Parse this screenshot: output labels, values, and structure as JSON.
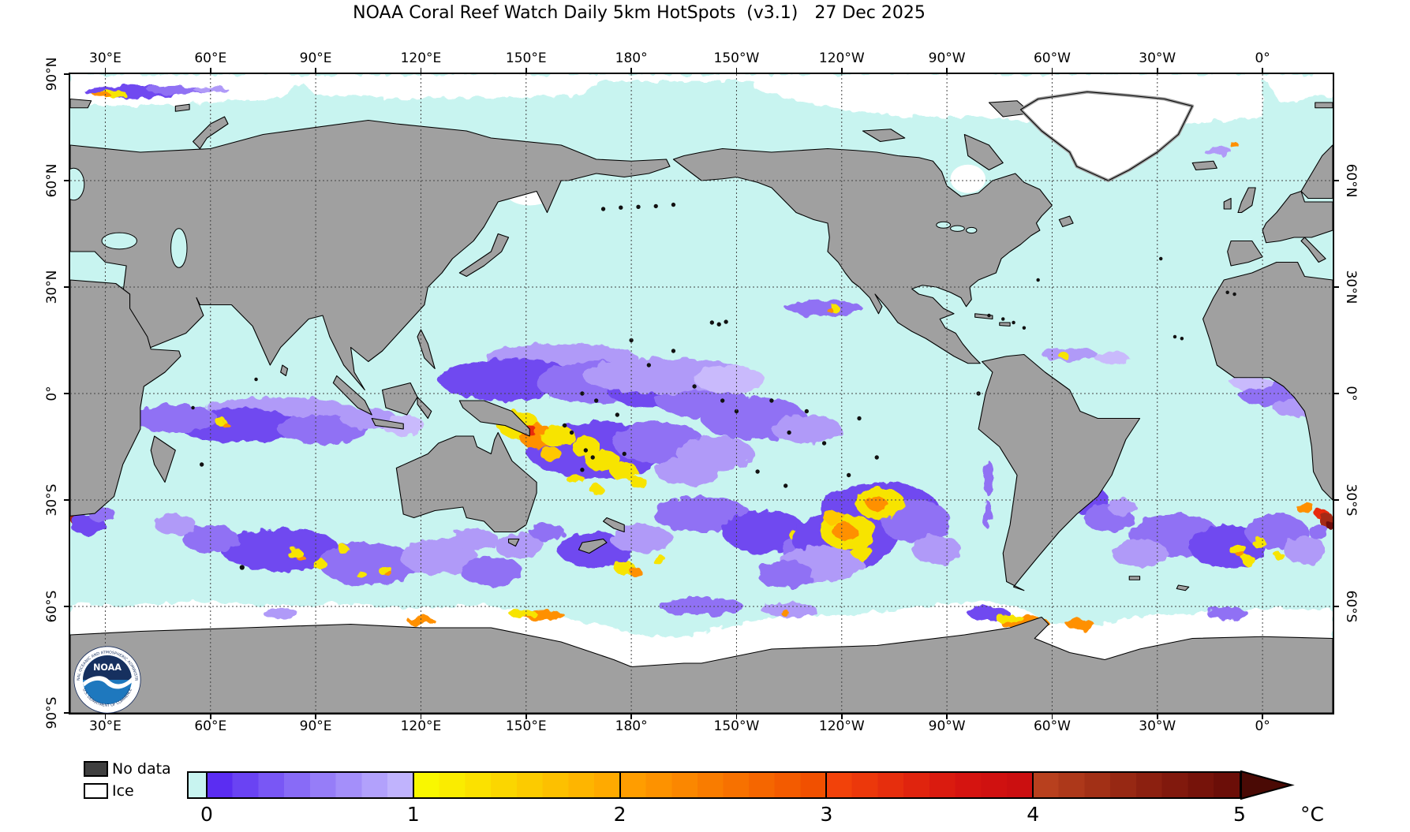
{
  "title": "NOAA Coral Reef Watch Daily 5km HotSpots  (v3.1)   27 Dec 2025",
  "map": {
    "lon_labels": [
      "30°E",
      "60°E",
      "90°E",
      "120°E",
      "150°E",
      "180°",
      "150°W",
      "120°W",
      "90°W",
      "60°W",
      "30°W",
      "0°"
    ],
    "lat_labels_left": [
      "90°N",
      "60°N",
      "30°N",
      "0°",
      "30°S",
      "60°S",
      "90°S"
    ],
    "lat_labels_right": [
      "60°N",
      "30°N",
      "0°",
      "30°S",
      "60°S"
    ],
    "colors": {
      "ocean_no_stress": "#c8f4f0",
      "land": "#a0a0a0",
      "ice": "#ffffff",
      "coastline": "#000000",
      "gridline": "#444444"
    },
    "hotspot_summary": "0-1°C purple anomalies across equatorial Indian Ocean, west/central tropical Pacific and southern mid-latitude oceans; 1-3°C yellow-orange patches in Coral Sea, SE Pacific, S Indian and SW Atlantic; 3-5°C red spots at Agulhas region map edges."
  },
  "logo": {
    "name": "NOAA",
    "ring_top": "NATIONAL OCEANIC AND ATMOSPHERIC ADMINISTRATION",
    "ring_bottom": "U.S. DEPARTMENT OF COMMERCE"
  },
  "legend": {
    "no_data_label": "No data",
    "no_data_color": "#3f3f3f",
    "ice_label": "Ice",
    "ice_color": "#ffffff",
    "unit": "°C",
    "ticks": [
      "0",
      "1",
      "2",
      "3",
      "4",
      "5"
    ],
    "below_min_color": "#c8f4f0",
    "arrow_color": "#4a0a05",
    "segments": [
      {
        "range": "0-1",
        "colors": [
          "#5b2df2",
          "#6a43f3",
          "#7957f5",
          "#886bf7",
          "#967df8",
          "#a48ffa",
          "#b2a1fc",
          "#c0b3fd"
        ]
      },
      {
        "range": "1-2",
        "colors": [
          "#f9f700",
          "#faec00",
          "#fbe100",
          "#fbd600",
          "#fccb00",
          "#fdc000",
          "#feb500",
          "#ffaa00"
        ]
      },
      {
        "range": "2-3",
        "colors": [
          "#ff9d00",
          "#fd9200",
          "#fb8700",
          "#f97c00",
          "#f77100",
          "#f56600",
          "#f35b00",
          "#f15000"
        ]
      },
      {
        "range": "3-4",
        "colors": [
          "#f2420a",
          "#ec380b",
          "#e62e0d",
          "#e0240e",
          "#da1b0f",
          "#d51410",
          "#d01110",
          "#cb0f10"
        ]
      },
      {
        "range": "4-5",
        "colors": [
          "#b8401e",
          "#ad381a",
          "#a23016",
          "#972813",
          "#8c2010",
          "#81190d",
          "#76130a",
          "#6b0e08"
        ]
      }
    ]
  }
}
